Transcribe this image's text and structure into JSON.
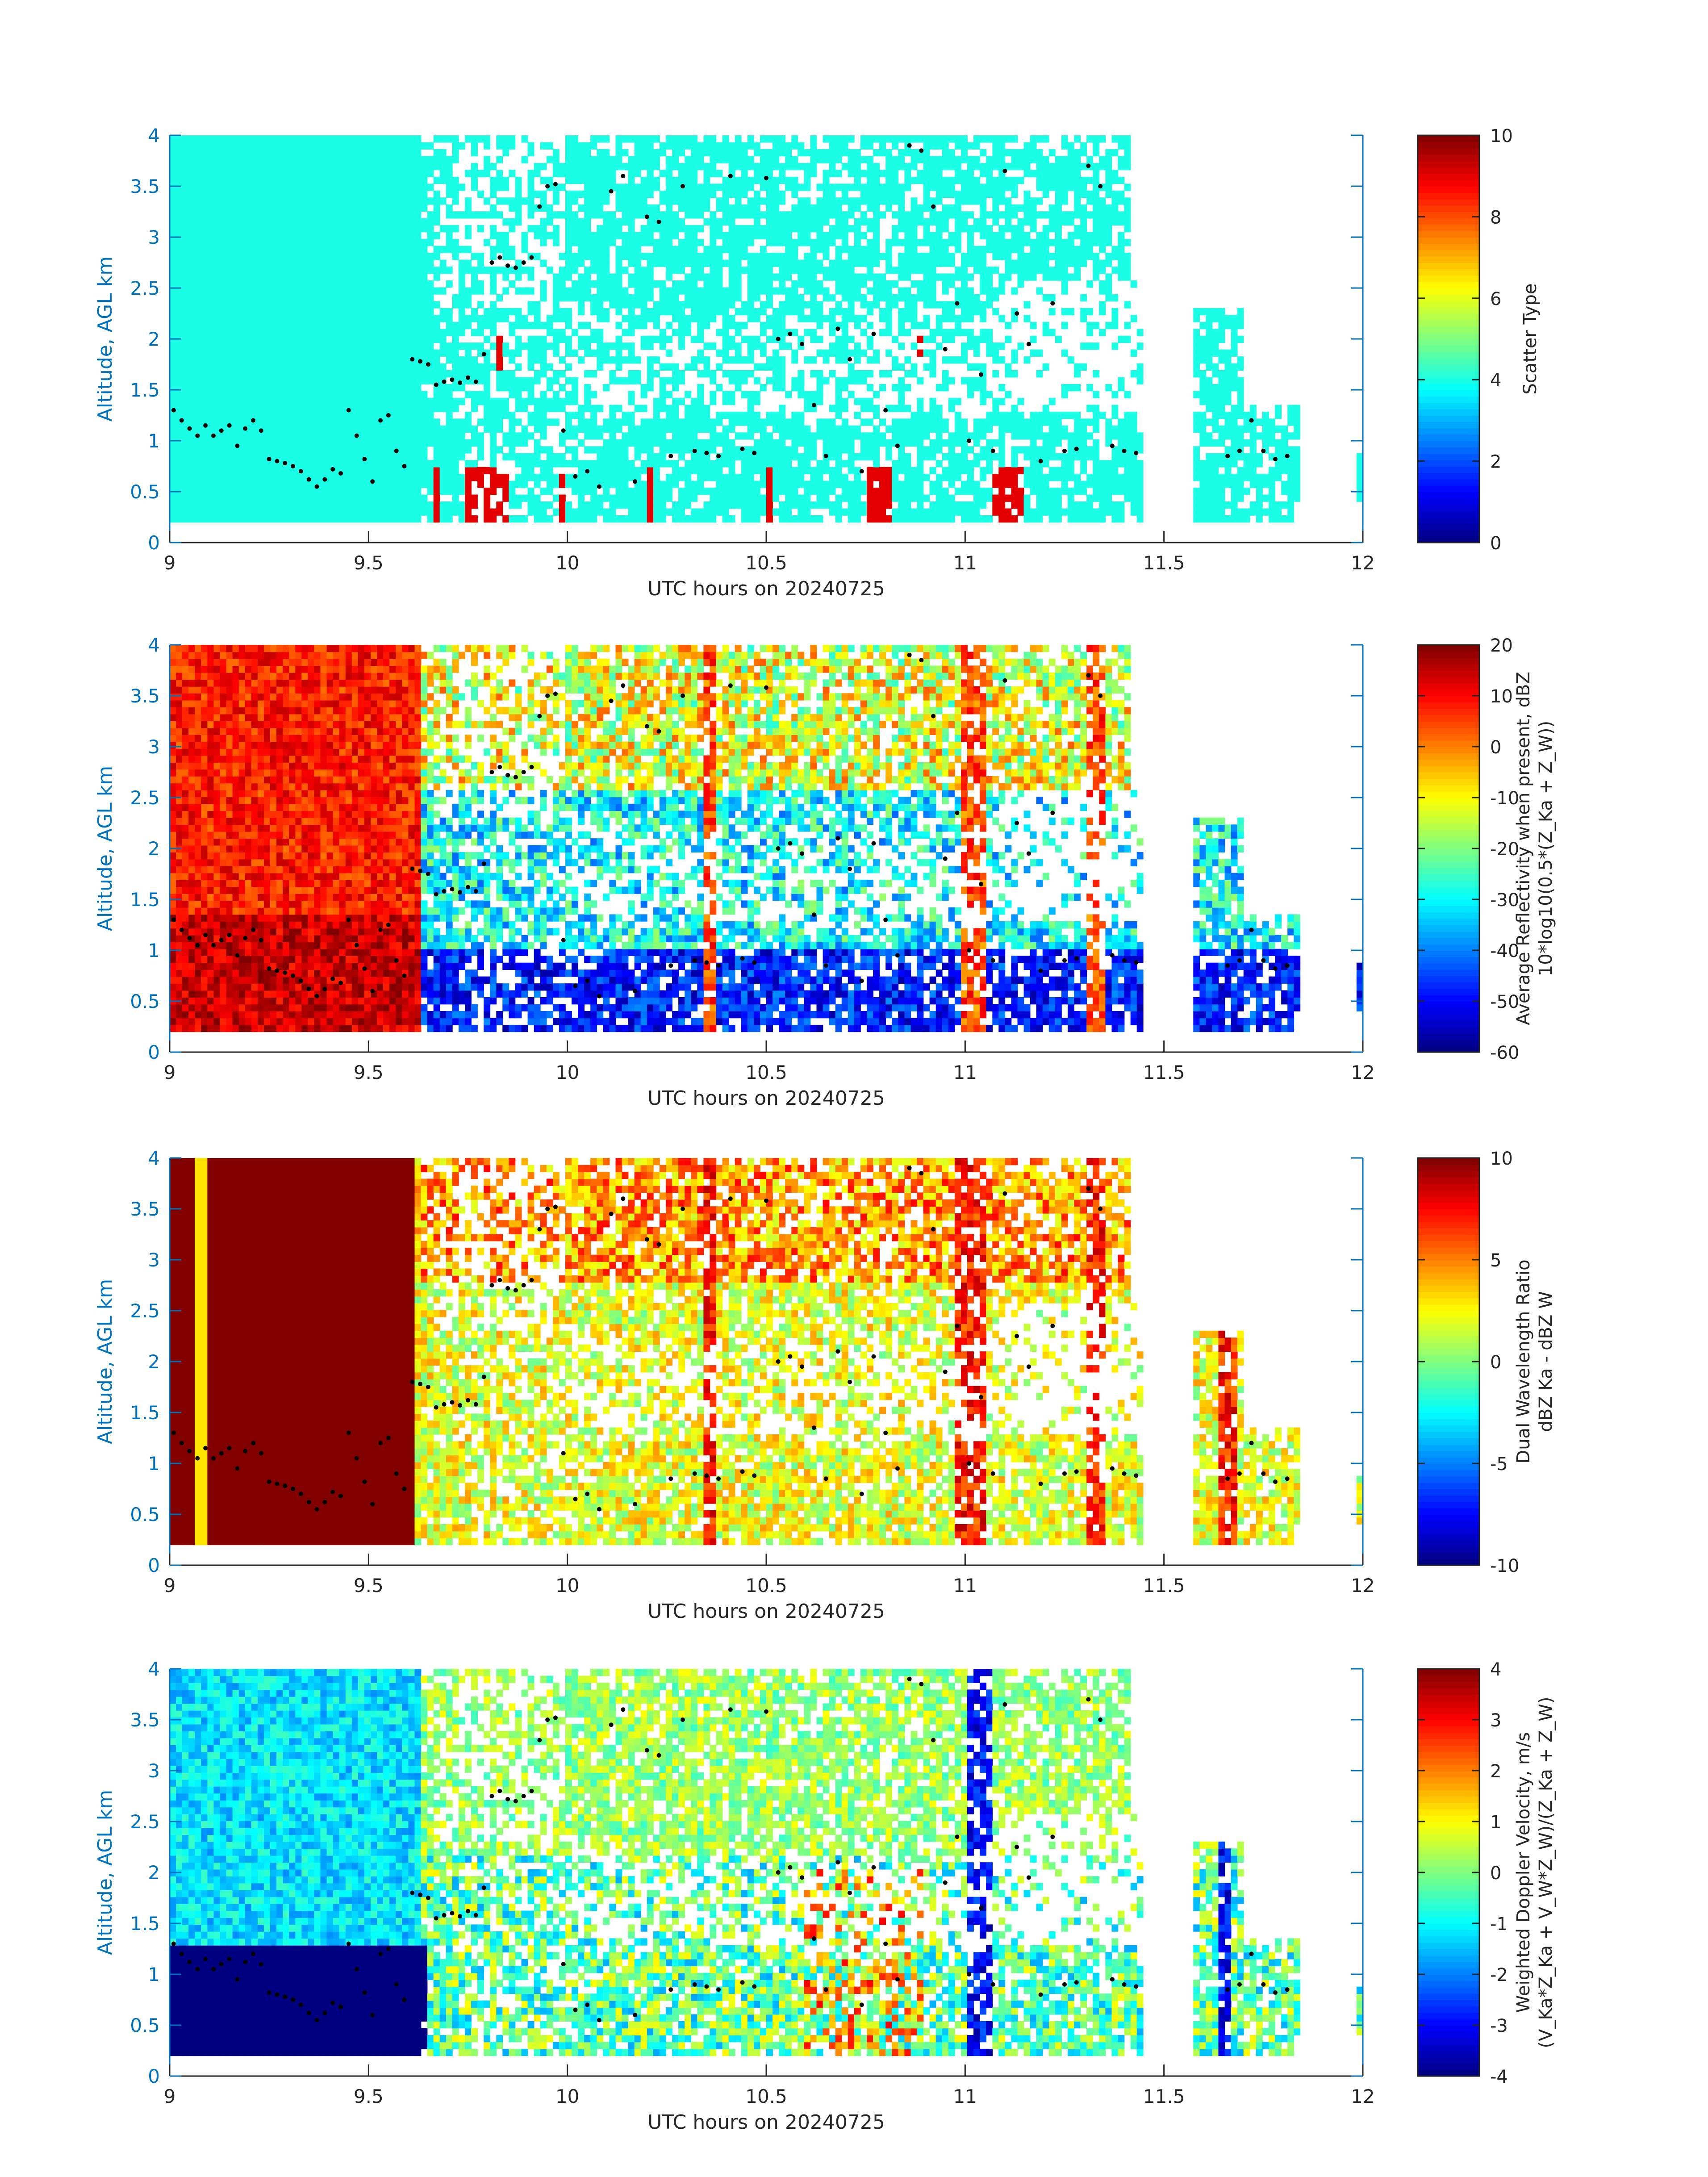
{
  "colors": {
    "axis": "#0072BD",
    "text": "#262626",
    "background": "#ffffff",
    "marker": "#000000"
  },
  "chart_data": [
    {
      "type": "heatmap",
      "xlabel": "UTC hours on 20240725",
      "ylabel": "Altitude, AGL km",
      "xlim": [
        9,
        12
      ],
      "ylim": [
        0,
        4
      ],
      "xticks": [
        "9",
        "9.5",
        "10",
        "10.5",
        "11",
        "11.5",
        "12"
      ],
      "yticks": [
        "0",
        "0.5",
        "1",
        "1.5",
        "2",
        "2.5",
        "3",
        "3.5",
        "4"
      ],
      "colorbar": {
        "label_lines": [
          "Scatter Type"
        ],
        "ticks": [
          "0",
          "2",
          "4",
          "6",
          "8",
          "10"
        ],
        "clim": [
          0,
          10
        ],
        "colormap": "jet"
      },
      "fill_rule": "scatter",
      "grid": false
    },
    {
      "type": "heatmap",
      "xlabel": "UTC hours on 20240725",
      "ylabel": "Altitude, AGL km",
      "xlim": [
        9,
        12
      ],
      "ylim": [
        0,
        4
      ],
      "xticks": [
        "9",
        "9.5",
        "10",
        "10.5",
        "11",
        "11.5",
        "12"
      ],
      "yticks": [
        "0",
        "0.5",
        "1",
        "1.5",
        "2",
        "2.5",
        "3",
        "3.5",
        "4"
      ],
      "colorbar": {
        "label_lines": [
          "Average Reflectivity when present, dBZ",
          "10*log10(0.5*(Z_Ka + Z_W))"
        ],
        "ticks": [
          "-60",
          "-50",
          "-40",
          "-30",
          "-20",
          "-10",
          "0",
          "10",
          "20"
        ],
        "clim": [
          -60,
          20
        ],
        "colormap": "jet"
      },
      "fill_rule": "reflectivity",
      "grid": false
    },
    {
      "type": "heatmap",
      "xlabel": "UTC hours on 20240725",
      "ylabel": "Altitude, AGL km",
      "xlim": [
        9,
        12
      ],
      "ylim": [
        0,
        4
      ],
      "xticks": [
        "9",
        "9.5",
        "10",
        "10.5",
        "11",
        "11.5",
        "12"
      ],
      "yticks": [
        "0",
        "0.5",
        "1",
        "1.5",
        "2",
        "2.5",
        "3",
        "3.5",
        "4"
      ],
      "colorbar": {
        "label_lines": [
          "Dual Wavelength Ratio",
          "dBZ Ka - dBZ W"
        ],
        "ticks": [
          "-10",
          "-5",
          "0",
          "5",
          "10"
        ],
        "clim": [
          -10,
          10
        ],
        "colormap": "jet"
      },
      "fill_rule": "dwr",
      "grid": false
    },
    {
      "type": "heatmap",
      "xlabel": "UTC hours on 20240725",
      "ylabel": "Altitude, AGL km",
      "xlim": [
        9,
        12
      ],
      "ylim": [
        0,
        4
      ],
      "xticks": [
        "9",
        "9.5",
        "10",
        "10.5",
        "11",
        "11.5",
        "12"
      ],
      "yticks": [
        "0",
        "0.5",
        "1",
        "1.5",
        "2",
        "2.5",
        "3",
        "3.5",
        "4"
      ],
      "colorbar": {
        "label_lines": [
          "Weighted Doppler Velocity, m/s",
          "(V_Ka*Z_Ka + V_W*Z_W)/(Z_Ka + Z_W)"
        ],
        "ticks": [
          "-4",
          "-3",
          "-2",
          "-1",
          "0",
          "1",
          "2",
          "3",
          "4"
        ],
        "clim": [
          -4,
          4
        ],
        "colormap": "jet"
      },
      "fill_rule": "velocity",
      "grid": false
    }
  ],
  "overlay_points": {
    "x": [
      9.01,
      9.03,
      9.05,
      9.07,
      9.09,
      9.11,
      9.13,
      9.15,
      9.17,
      9.19,
      9.21,
      9.23,
      9.25,
      9.27,
      9.29,
      9.31,
      9.33,
      9.35,
      9.37,
      9.39,
      9.41,
      9.43,
      9.45,
      9.47,
      9.49,
      9.51,
      9.53,
      9.55,
      9.57,
      9.59,
      9.61,
      9.63,
      9.65,
      9.67,
      9.69,
      9.71,
      9.73,
      9.75,
      9.77,
      9.79,
      9.81,
      9.83,
      9.85,
      9.87,
      9.89,
      9.91,
      9.93,
      9.95,
      9.97,
      9.99,
      10.02,
      10.05,
      10.08,
      10.11,
      10.14,
      10.17,
      10.2,
      10.23,
      10.26,
      10.29,
      10.32,
      10.35,
      10.38,
      10.41,
      10.44,
      10.47,
      10.5,
      10.53,
      10.56,
      10.59,
      10.62,
      10.65,
      10.68,
      10.71,
      10.74,
      10.77,
      10.8,
      10.83,
      10.86,
      10.89,
      10.92,
      10.95,
      10.98,
      11.01,
      11.04,
      11.07,
      11.1,
      11.13,
      11.16,
      11.19,
      11.22,
      11.25,
      11.28,
      11.31,
      11.34,
      11.37,
      11.4,
      11.43,
      11.66,
      11.69,
      11.72,
      11.75,
      11.78,
      11.81
    ],
    "y": [
      1.3,
      1.2,
      1.12,
      1.05,
      1.15,
      1.05,
      1.1,
      1.15,
      0.95,
      1.12,
      1.2,
      1.1,
      0.82,
      0.8,
      0.78,
      0.75,
      0.7,
      0.62,
      0.55,
      0.62,
      0.72,
      0.68,
      1.3,
      1.05,
      0.82,
      0.6,
      1.2,
      1.25,
      0.9,
      0.75,
      1.8,
      1.78,
      1.75,
      1.55,
      1.58,
      1.6,
      1.57,
      1.62,
      1.58,
      1.85,
      2.75,
      2.8,
      2.72,
      2.7,
      2.75,
      2.8,
      3.3,
      3.5,
      3.52,
      1.1,
      0.65,
      0.7,
      0.55,
      3.45,
      3.6,
      0.6,
      3.2,
      3.15,
      0.85,
      3.5,
      0.9,
      0.88,
      0.85,
      3.6,
      0.92,
      0.88,
      3.58,
      2.0,
      2.05,
      1.95,
      1.35,
      0.85,
      2.1,
      1.8,
      0.7,
      2.05,
      1.3,
      0.95,
      3.9,
      3.85,
      3.3,
      1.9,
      2.35,
      1.0,
      1.65,
      0.9,
      3.65,
      2.25,
      1.95,
      0.8,
      2.35,
      0.9,
      0.92,
      3.7,
      3.5,
      0.95,
      0.9,
      0.88,
      0.85,
      0.9,
      1.2,
      0.9,
      0.82,
      0.85
    ]
  }
}
